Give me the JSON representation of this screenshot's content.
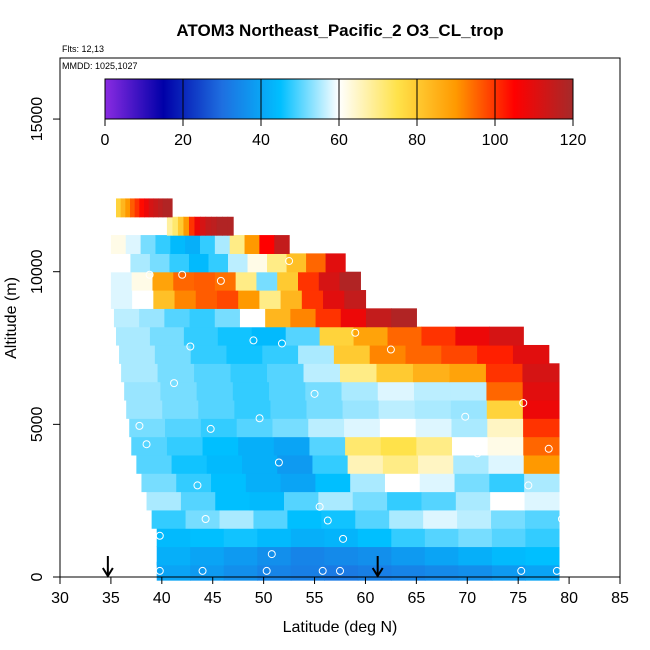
{
  "chart_data": {
    "type": "heatmap",
    "title": "ATOM3 Northeast_Pacific_2 O3_CL_trop",
    "flights_text": "Flts: 12,13",
    "date_text": "MMDD: 1025,1027",
    "xlabel": "Latitude (deg N)",
    "ylabel": "Altitude (m)",
    "xlim": [
      30,
      85
    ],
    "ylim": [
      0,
      17000
    ],
    "x_ticks": [
      "30",
      "35",
      "40",
      "45",
      "50",
      "55",
      "60",
      "65",
      "70",
      "75",
      "80",
      "85"
    ],
    "y_ticks": [
      "0",
      "5000",
      "10000",
      "15000"
    ],
    "colorbar": {
      "range": [
        0,
        120
      ],
      "ticks": [
        "0",
        "20",
        "40",
        "60",
        "80",
        "100",
        "120"
      ],
      "colors": [
        "#8a2be2",
        "#0000a8",
        "#1e6fe0",
        "#00bfff",
        "#ffffff",
        "#ffe24a",
        "#ff9900",
        "#ff0000",
        "#a52a2a"
      ]
    },
    "arrows_lat": [
      34.7,
      61.2
    ],
    "grid": false,
    "rows": [
      {
        "alt": 200,
        "lat0": 39.5,
        "lat1": 79.0,
        "vals": [
          40,
          38,
          36,
          34,
          33,
          32,
          33,
          34,
          35,
          36,
          38,
          40
        ]
      },
      {
        "alt": 700,
        "lat0": 39.5,
        "lat1": 79.0,
        "vals": [
          42,
          40,
          38,
          36,
          34,
          35,
          36,
          38,
          40,
          42,
          44,
          45
        ]
      },
      {
        "alt": 1300,
        "lat0": 39.5,
        "lat1": 79.0,
        "vals": [
          44,
          45,
          46,
          44,
          42,
          43,
          45,
          48,
          50,
          52,
          50,
          48
        ]
      },
      {
        "alt": 1900,
        "lat0": 39.0,
        "lat1": 79.0,
        "vals": [
          48,
          52,
          55,
          50,
          45,
          46,
          50,
          55,
          58,
          56,
          52,
          50
        ]
      },
      {
        "alt": 2500,
        "lat0": 38.5,
        "lat1": 79.0,
        "vals": [
          55,
          50,
          45,
          44,
          50,
          55,
          52,
          48,
          50,
          55,
          60,
          58
        ]
      },
      {
        "alt": 3100,
        "lat0": 38.0,
        "lat1": 79.0,
        "vals": [
          52,
          48,
          45,
          42,
          40,
          45,
          55,
          60,
          58,
          52,
          48,
          55
        ]
      },
      {
        "alt": 3700,
        "lat0": 37.5,
        "lat1": 79.0,
        "vals": [
          50,
          46,
          44,
          42,
          38,
          48,
          66,
          70,
          65,
          55,
          58,
          90
        ]
      },
      {
        "alt": 4300,
        "lat0": 37.0,
        "lat1": 79.0,
        "vals": [
          50,
          48,
          45,
          42,
          40,
          50,
          72,
          75,
          70,
          60,
          62,
          95
        ]
      },
      {
        "alt": 4900,
        "lat0": 36.8,
        "lat1": 79.0,
        "vals": [
          52,
          50,
          48,
          50,
          52,
          56,
          58,
          60,
          58,
          55,
          65,
          100
        ]
      },
      {
        "alt": 5500,
        "lat0": 36.5,
        "lat1": 79.0,
        "vals": [
          54,
          52,
          50,
          48,
          50,
          52,
          54,
          56,
          55,
          54,
          78,
          108
        ]
      },
      {
        "alt": 6100,
        "lat0": 36.3,
        "lat1": 79.0,
        "vals": [
          54,
          52,
          50,
          48,
          50,
          52,
          55,
          58,
          56,
          56,
          95,
          110
        ]
      },
      {
        "alt": 6700,
        "lat0": 36.0,
        "lat1": 79.0,
        "vals": [
          55,
          52,
          50,
          48,
          50,
          56,
          70,
          80,
          85,
          88,
          100,
          112
        ]
      },
      {
        "alt": 7300,
        "lat0": 35.8,
        "lat1": 78.0,
        "vals": [
          55,
          52,
          48,
          46,
          48,
          55,
          80,
          92,
          95,
          98,
          102,
          110
        ]
      },
      {
        "alt": 7900,
        "lat0": 35.5,
        "lat1": 75.5,
        "vals": [
          55,
          52,
          48,
          46,
          44,
          50,
          78,
          88,
          95,
          100,
          108,
          112
        ]
      },
      {
        "alt": 8500,
        "lat0": 35.3,
        "lat1": 65.0,
        "vals": [
          56,
          54,
          50,
          48,
          52,
          60,
          84,
          92,
          100,
          108,
          115,
          118
        ]
      },
      {
        "alt": 9100,
        "lat0": 35.0,
        "lat1": 60.0,
        "vals": [
          58,
          60,
          82,
          92,
          96,
          98,
          90,
          70,
          84,
          100,
          110,
          115
        ]
      },
      {
        "alt": 9700,
        "lat0": 35.0,
        "lat1": 59.5,
        "vals": [
          58,
          62,
          88,
          95,
          96,
          94,
          70,
          52,
          80,
          100,
          112,
          118
        ]
      },
      {
        "alt": 10300,
        "lat0": 35.0,
        "lat1": 58.0,
        "vals": [
          60,
          55,
          52,
          48,
          44,
          48,
          56,
          62,
          70,
          82,
          95,
          110
        ]
      },
      {
        "alt": 10900,
        "lat0": 35.0,
        "lat1": 52.5,
        "vals": [
          62,
          58,
          52,
          48,
          44,
          42,
          48,
          55,
          70,
          90,
          105,
          115
        ]
      },
      {
        "alt": 11500,
        "lat0": 40.5,
        "lat1": 47.0,
        "vals": [
          68,
          72,
          80,
          90,
          100,
          108,
          112,
          115,
          116,
          118,
          118,
          118
        ]
      },
      {
        "alt": 12100,
        "lat0": 35.5,
        "lat1": 41.0,
        "vals": [
          78,
          84,
          90,
          96,
          100,
          104,
          108,
          112,
          114,
          116,
          118,
          118
        ]
      }
    ],
    "points": [
      [
        39.8,
        200
      ],
      [
        44.0,
        200
      ],
      [
        50.3,
        200
      ],
      [
        55.8,
        200
      ],
      [
        57.5,
        200
      ],
      [
        75.3,
        200
      ],
      [
        78.8,
        200
      ],
      [
        50.8,
        750
      ],
      [
        39.8,
        1350
      ],
      [
        57.8,
        1250
      ],
      [
        55.5,
        2300
      ],
      [
        56.3,
        1850
      ],
      [
        44.3,
        1900
      ],
      [
        79.3,
        1900
      ],
      [
        43.5,
        3000
      ],
      [
        76.0,
        3000
      ],
      [
        51.5,
        3750
      ],
      [
        71.0,
        4050
      ],
      [
        38.5,
        4350
      ],
      [
        78.0,
        4200
      ],
      [
        44.8,
        4850
      ],
      [
        37.8,
        4950
      ],
      [
        49.6,
        5200
      ],
      [
        69.8,
        5250
      ],
      [
        55.0,
        6000
      ],
      [
        75.5,
        5700
      ],
      [
        41.2,
        6350
      ],
      [
        42.8,
        7550
      ],
      [
        49.0,
        7750
      ],
      [
        51.8,
        7650
      ],
      [
        59.0,
        8000
      ],
      [
        62.5,
        7450
      ],
      [
        38.8,
        9900
      ],
      [
        45.8,
        9700
      ],
      [
        52.5,
        10350
      ],
      [
        42.0,
        9900
      ]
    ]
  }
}
